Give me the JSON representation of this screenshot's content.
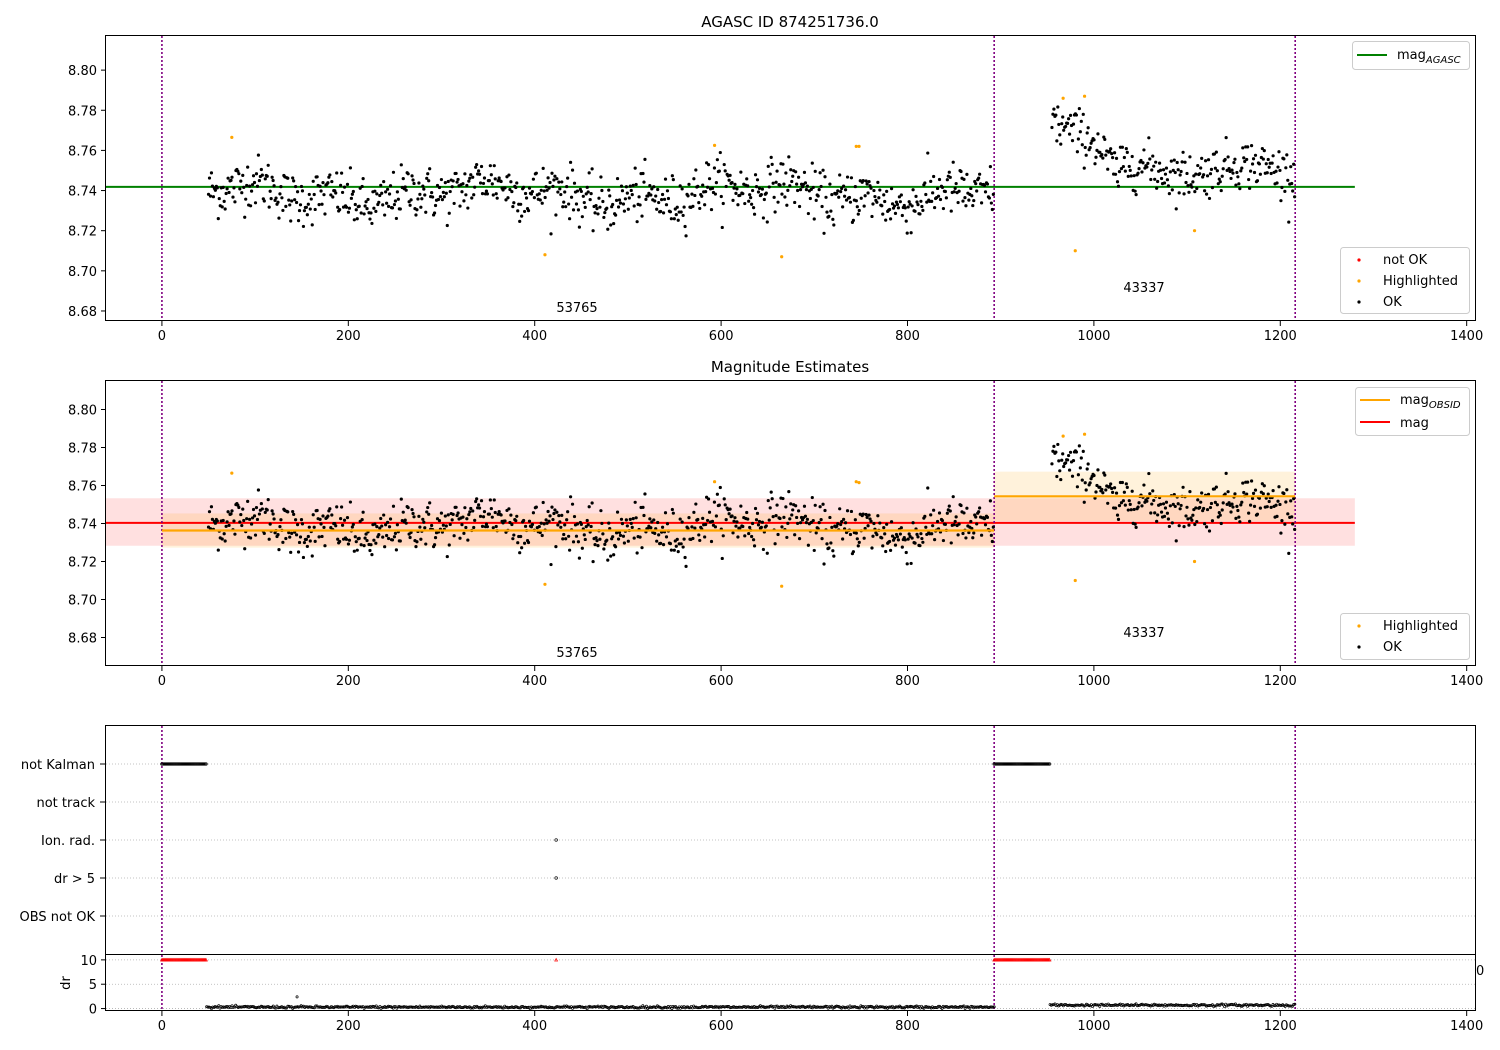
{
  "figure": {
    "title": "AGASC ID 874251736.0",
    "subtitle": "Magnitude Estimates"
  },
  "colors": {
    "ok": "#000000",
    "highlighted": "#ffa500",
    "not_ok": "#ff0000",
    "mag_agasc": "#008000",
    "mag_obsid": "#ffa500",
    "mag": "#ff0000",
    "obsid_boundary": "#800080",
    "obsid_boundary_alt": "#0000ff"
  },
  "chart_data": [
    {
      "type": "scatter",
      "title": "AGASC ID 874251736.0",
      "xlim": [
        -60,
        1410
      ],
      "ylim": [
        8.675,
        8.817
      ],
      "xticks": [
        "0",
        "200",
        "400",
        "600",
        "800",
        "1000",
        "1200",
        "1400"
      ],
      "yticks": [
        "8.68",
        "8.70",
        "8.72",
        "8.74",
        "8.76",
        "8.78",
        "8.80"
      ],
      "grid": false,
      "obsid_boundaries": [
        0,
        893,
        1216
      ],
      "obsid_labels": [
        {
          "text": "53765",
          "x": 446,
          "y": 8.684
        },
        {
          "text": "43337",
          "x": 1055,
          "y": 8.694
        }
      ],
      "lines": [
        {
          "name": "mag_AGASC",
          "label_main": "mag",
          "label_sub": "AGASC",
          "y": 8.7418,
          "x": [
            -60,
            1280
          ],
          "color": "#008000"
        }
      ],
      "series": [
        {
          "name": "not OK",
          "color": "#ff0000"
        },
        {
          "name": "Highlighted",
          "color": "#ffa500"
        },
        {
          "name": "OK",
          "color": "#000000"
        }
      ],
      "highlighted_points": [
        {
          "x": 75,
          "y": 8.7665
        },
        {
          "x": 411,
          "y": 8.708
        },
        {
          "x": 593,
          "y": 8.7625
        },
        {
          "x": 665,
          "y": 8.707
        },
        {
          "x": 745,
          "y": 8.762
        },
        {
          "x": 748,
          "y": 8.762
        },
        {
          "x": 967,
          "y": 8.786
        },
        {
          "x": 980,
          "y": 8.71
        },
        {
          "x": 990,
          "y": 8.787
        },
        {
          "x": 1108,
          "y": 8.72
        }
      ],
      "legend_upper": "top-right",
      "legend_lower": "bottom-right"
    },
    {
      "type": "scatter",
      "title": "Magnitude Estimates",
      "xlim": [
        -60,
        1410
      ],
      "ylim": [
        8.665,
        8.815
      ],
      "xticks": [
        "0",
        "200",
        "400",
        "600",
        "800",
        "1000",
        "1200",
        "1400"
      ],
      "yticks": [
        "8.68",
        "8.70",
        "8.72",
        "8.74",
        "8.76",
        "8.78",
        "8.80"
      ],
      "grid": false,
      "obsid_boundaries": [
        0,
        893,
        1216
      ],
      "obsid_labels": [
        {
          "text": "53765",
          "x": 446,
          "y": 8.673
        },
        {
          "text": "43337",
          "x": 1055,
          "y": 8.684
        }
      ],
      "lines": [
        {
          "name": "mag_OBSID",
          "label_main": "mag",
          "label_sub": "OBSID",
          "color": "#ffa500",
          "segments": [
            {
              "x": [
                0,
                893
              ],
              "y": 8.7363,
              "band": [
                8.7273,
                8.7453
              ]
            },
            {
              "x": [
                893,
                1216
              ],
              "y": 8.7543,
              "band": [
                8.7413,
                8.7673
              ]
            }
          ]
        },
        {
          "name": "mag",
          "label_main": "mag",
          "color": "#ff0000",
          "y": 8.7403,
          "x": [
            -60,
            1280
          ],
          "band": [
            8.7283,
            8.7533
          ]
        }
      ],
      "series": [
        {
          "name": "Highlighted",
          "color": "#ffa500"
        },
        {
          "name": "OK",
          "color": "#000000"
        }
      ],
      "highlighted_points": [
        {
          "x": 75,
          "y": 8.7665
        },
        {
          "x": 411,
          "y": 8.708
        },
        {
          "x": 593,
          "y": 8.762
        },
        {
          "x": 665,
          "y": 8.707
        },
        {
          "x": 745,
          "y": 8.762
        },
        {
          "x": 748,
          "y": 8.7615
        },
        {
          "x": 967,
          "y": 8.786
        },
        {
          "x": 980,
          "y": 8.71
        },
        {
          "x": 990,
          "y": 8.787
        },
        {
          "x": 1108,
          "y": 8.72
        }
      ],
      "legend_upper": "top-right",
      "legend_lower": "bottom-right"
    },
    {
      "type": "scatter",
      "title": "",
      "xlim": [
        -60,
        1410
      ],
      "categories": [
        "not Kalman",
        "not track",
        "Ion. rad.",
        "dr > 5",
        "OBS not OK"
      ],
      "obsid_boundaries": [
        0,
        893,
        1216
      ],
      "grid": true,
      "flag_ranges": [
        {
          "category": "not Kalman",
          "x": [
            0,
            48
          ]
        },
        {
          "category": "not Kalman",
          "x": [
            893,
            953
          ]
        }
      ],
      "flag_points": [
        {
          "category": "Ion. rad.",
          "x": 423
        },
        {
          "category": "dr > 5",
          "x": 423
        }
      ]
    },
    {
      "type": "scatter",
      "title": "",
      "ylabel": "dr",
      "xlim": [
        -60,
        1410
      ],
      "ylim": [
        -0.5,
        11
      ],
      "xticks": [
        "0",
        "200",
        "400",
        "600",
        "800",
        "1000",
        "1200",
        "1400"
      ],
      "yticks": [
        "0",
        "5",
        "10"
      ],
      "stray_tick_label": "0",
      "obsid_boundaries": [
        0,
        893,
        1216
      ],
      "clipped_ranges": [
        {
          "x": [
            0,
            48
          ],
          "y": 10
        },
        {
          "x": [
            893,
            953
          ],
          "y": 10
        }
      ],
      "clipped_points": [
        {
          "x": 423,
          "y": 10
        }
      ],
      "outlier_points": [
        {
          "x": 145,
          "y": 2.4
        }
      ],
      "ok_ranges": [
        {
          "x": [
            48,
            893
          ],
          "y": 0.3
        },
        {
          "x": [
            953,
            1216
          ],
          "y": 0.7
        }
      ]
    }
  ]
}
